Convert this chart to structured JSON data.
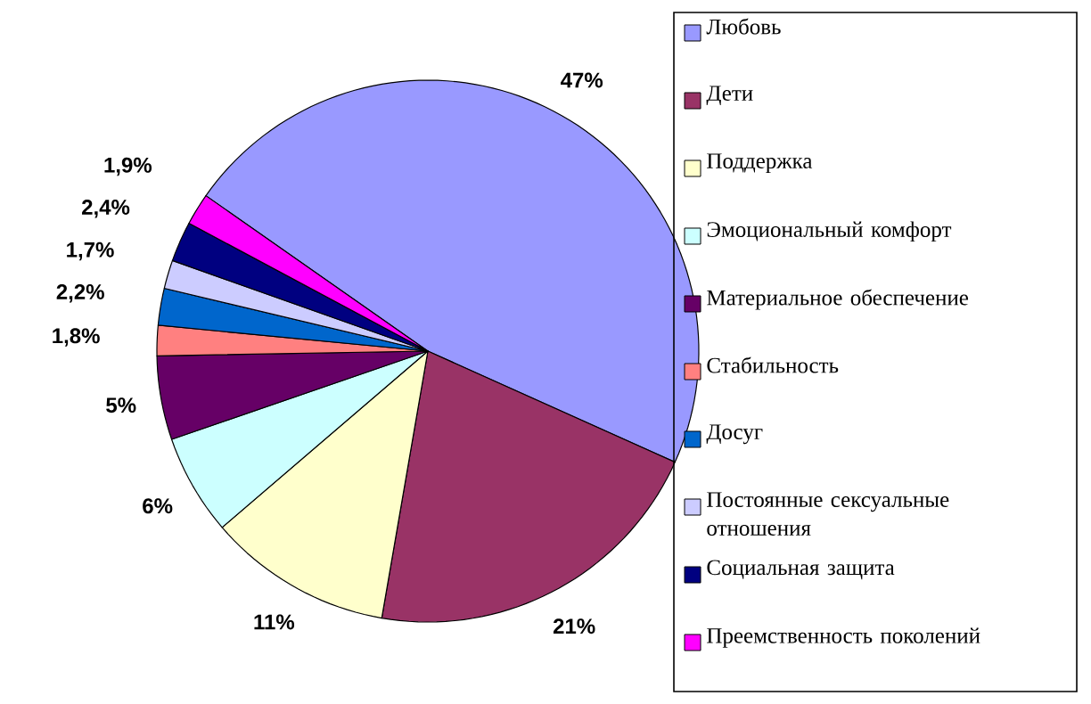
{
  "chart_data": {
    "type": "pie",
    "categories": [
      "Любовь",
      "Дети",
      "Поддержка",
      "Эмоциональный комфорт",
      "Материальное обеспечение",
      "Стабильность",
      "Досуг",
      "Постоянные сексуальные отношения",
      "Социальная защита",
      "Преемственность поколений"
    ],
    "values": [
      47,
      21,
      11,
      6,
      5,
      1.8,
      2.2,
      1.7,
      2.4,
      1.9
    ],
    "value_labels": [
      "47%",
      "21%",
      "11%",
      "6%",
      "5%",
      "1,8%",
      "2,2%",
      "1,7%",
      "2,4%",
      "1,9%"
    ],
    "colors": [
      "#9999ff",
      "#993366",
      "#ffffcc",
      "#ccffff",
      "#660066",
      "#ff8080",
      "#0066cc",
      "#ccccff",
      "#000080",
      "#ff00ff"
    ],
    "legend": "right"
  }
}
